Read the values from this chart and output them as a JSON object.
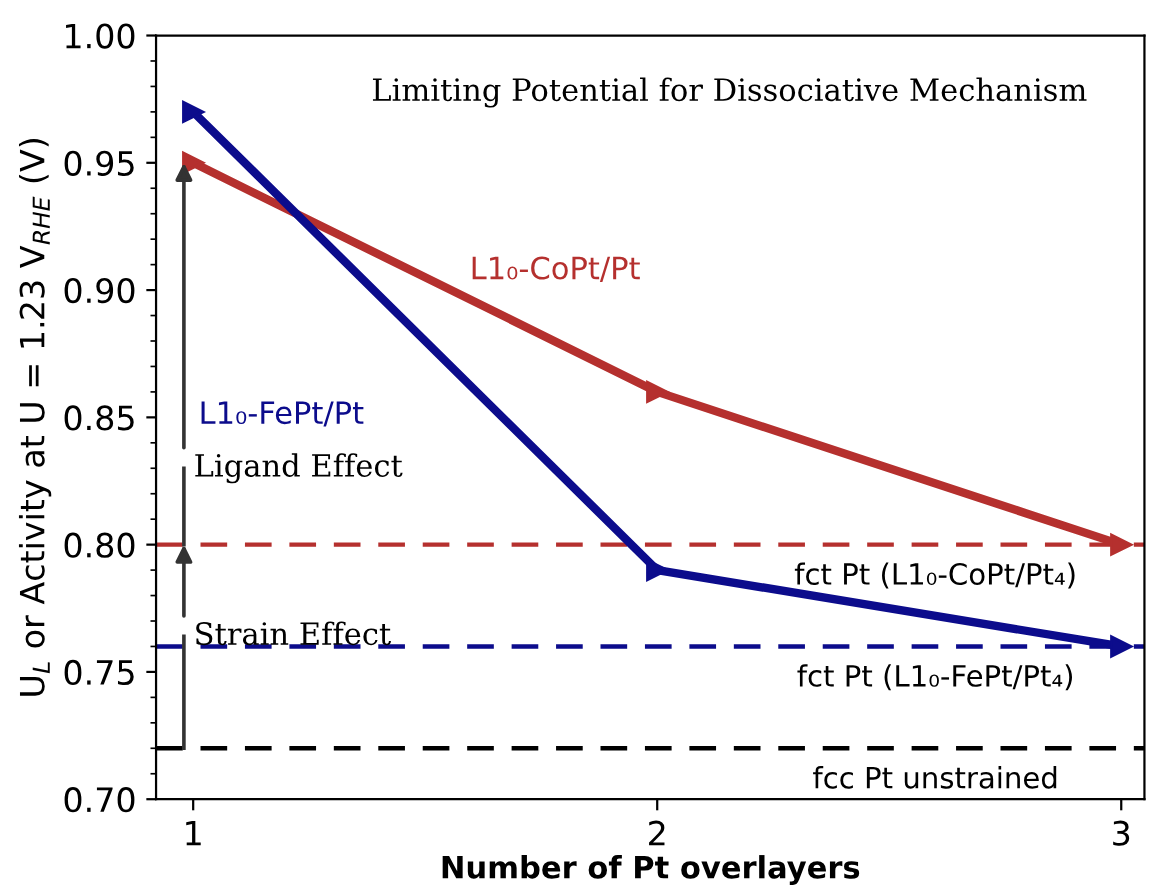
{
  "chart_data": {
    "type": "line",
    "title": "Limiting Potential for Dissociative Mechanism",
    "xlabel": "Number of Pt overlayers",
    "ylabel": "U$_{L}$ or Activity at U = 1.23 V$_{RHE}$ (V)",
    "x": [
      1,
      2,
      3
    ],
    "series": [
      {
        "name": "L1₀-CoPt/Pt",
        "color": "#b5302e",
        "values": [
          0.95,
          0.86,
          0.8
        ]
      },
      {
        "name": "L1₀-FePt/Pt",
        "color": "#0c0c8c",
        "values": [
          0.97,
          0.79,
          0.76
        ]
      }
    ],
    "xlim": [
      0.92,
      3.05
    ],
    "ylim": [
      0.7,
      1.0
    ],
    "xticks": [
      1,
      2,
      3
    ],
    "yticks": [
      {
        "value": 0.7,
        "label": "0.70"
      },
      {
        "value": 0.75,
        "label": "0.75"
      },
      {
        "value": 0.8,
        "label": "0.80"
      },
      {
        "value": 0.85,
        "label": "0.85"
      },
      {
        "value": 0.9,
        "label": "0.90"
      },
      {
        "value": 0.95,
        "label": "0.95"
      },
      {
        "value": 1.0,
        "label": "1.00"
      }
    ],
    "ref_lines": [
      {
        "axis": "y",
        "value": 0.8,
        "label": "fct Pt (L1₀-CoPt/Pt₄)",
        "color": "#b5302e",
        "line_style": "dashed"
      },
      {
        "axis": "y",
        "value": 0.76,
        "label": "fct Pt (L1₀-FePt/Pt₄)",
        "color": "#0c0c8c",
        "line_style": "dashed"
      },
      {
        "axis": "y",
        "value": 0.72,
        "label": "fcc Pt unstrained",
        "color": "#000000",
        "line_style": "dashed"
      }
    ],
    "annotations": [
      {
        "text": "Strain Effect",
        "x": 1,
        "y": 0.8
      },
      {
        "text": "Ligand Effect",
        "x": 1,
        "y": 0.95
      }
    ],
    "marker": "triangle",
    "line_style": "solid",
    "grid": false,
    "legend": false
  }
}
